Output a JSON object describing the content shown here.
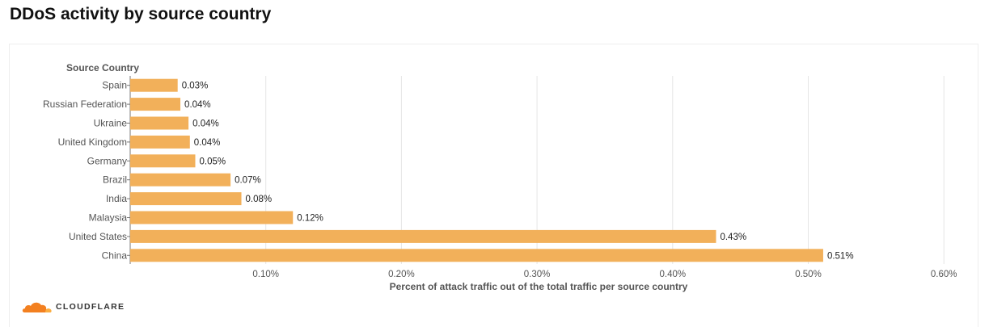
{
  "page": {
    "title": "DDoS activity by source country",
    "brand_name": "CLOUDFLARE"
  },
  "colors": {
    "bar": "#f2b05a",
    "grid": "#e5e5e5",
    "axis": "#777777",
    "label": "#555555",
    "brand_orange": "#f38020",
    "brand_light": "#fbad41"
  },
  "chart_data": {
    "type": "bar",
    "orientation": "horizontal",
    "ylabel": "Source Country",
    "xlabel": "Percent of attack traffic out of the total traffic per source country",
    "categories": [
      "Spain",
      "Russian Federation",
      "Ukraine",
      "United Kingdom",
      "Germany",
      "Brazil",
      "India",
      "Malaysia",
      "United States",
      "China"
    ],
    "values": [
      0.035,
      0.037,
      0.043,
      0.044,
      0.048,
      0.074,
      0.082,
      0.12,
      0.432,
      0.511
    ],
    "value_labels": [
      "0.03%",
      "0.04%",
      "0.04%",
      "0.04%",
      "0.05%",
      "0.07%",
      "0.08%",
      "0.12%",
      "0.43%",
      "0.51%"
    ],
    "xticks": [
      0.1,
      0.2,
      0.3,
      0.4,
      0.5,
      0.6
    ],
    "xtick_labels": [
      "0.10%",
      "0.20%",
      "0.30%",
      "0.40%",
      "0.50%",
      "0.60%"
    ],
    "xlim": [
      0,
      0.6
    ],
    "grid": true,
    "legend": "none"
  }
}
